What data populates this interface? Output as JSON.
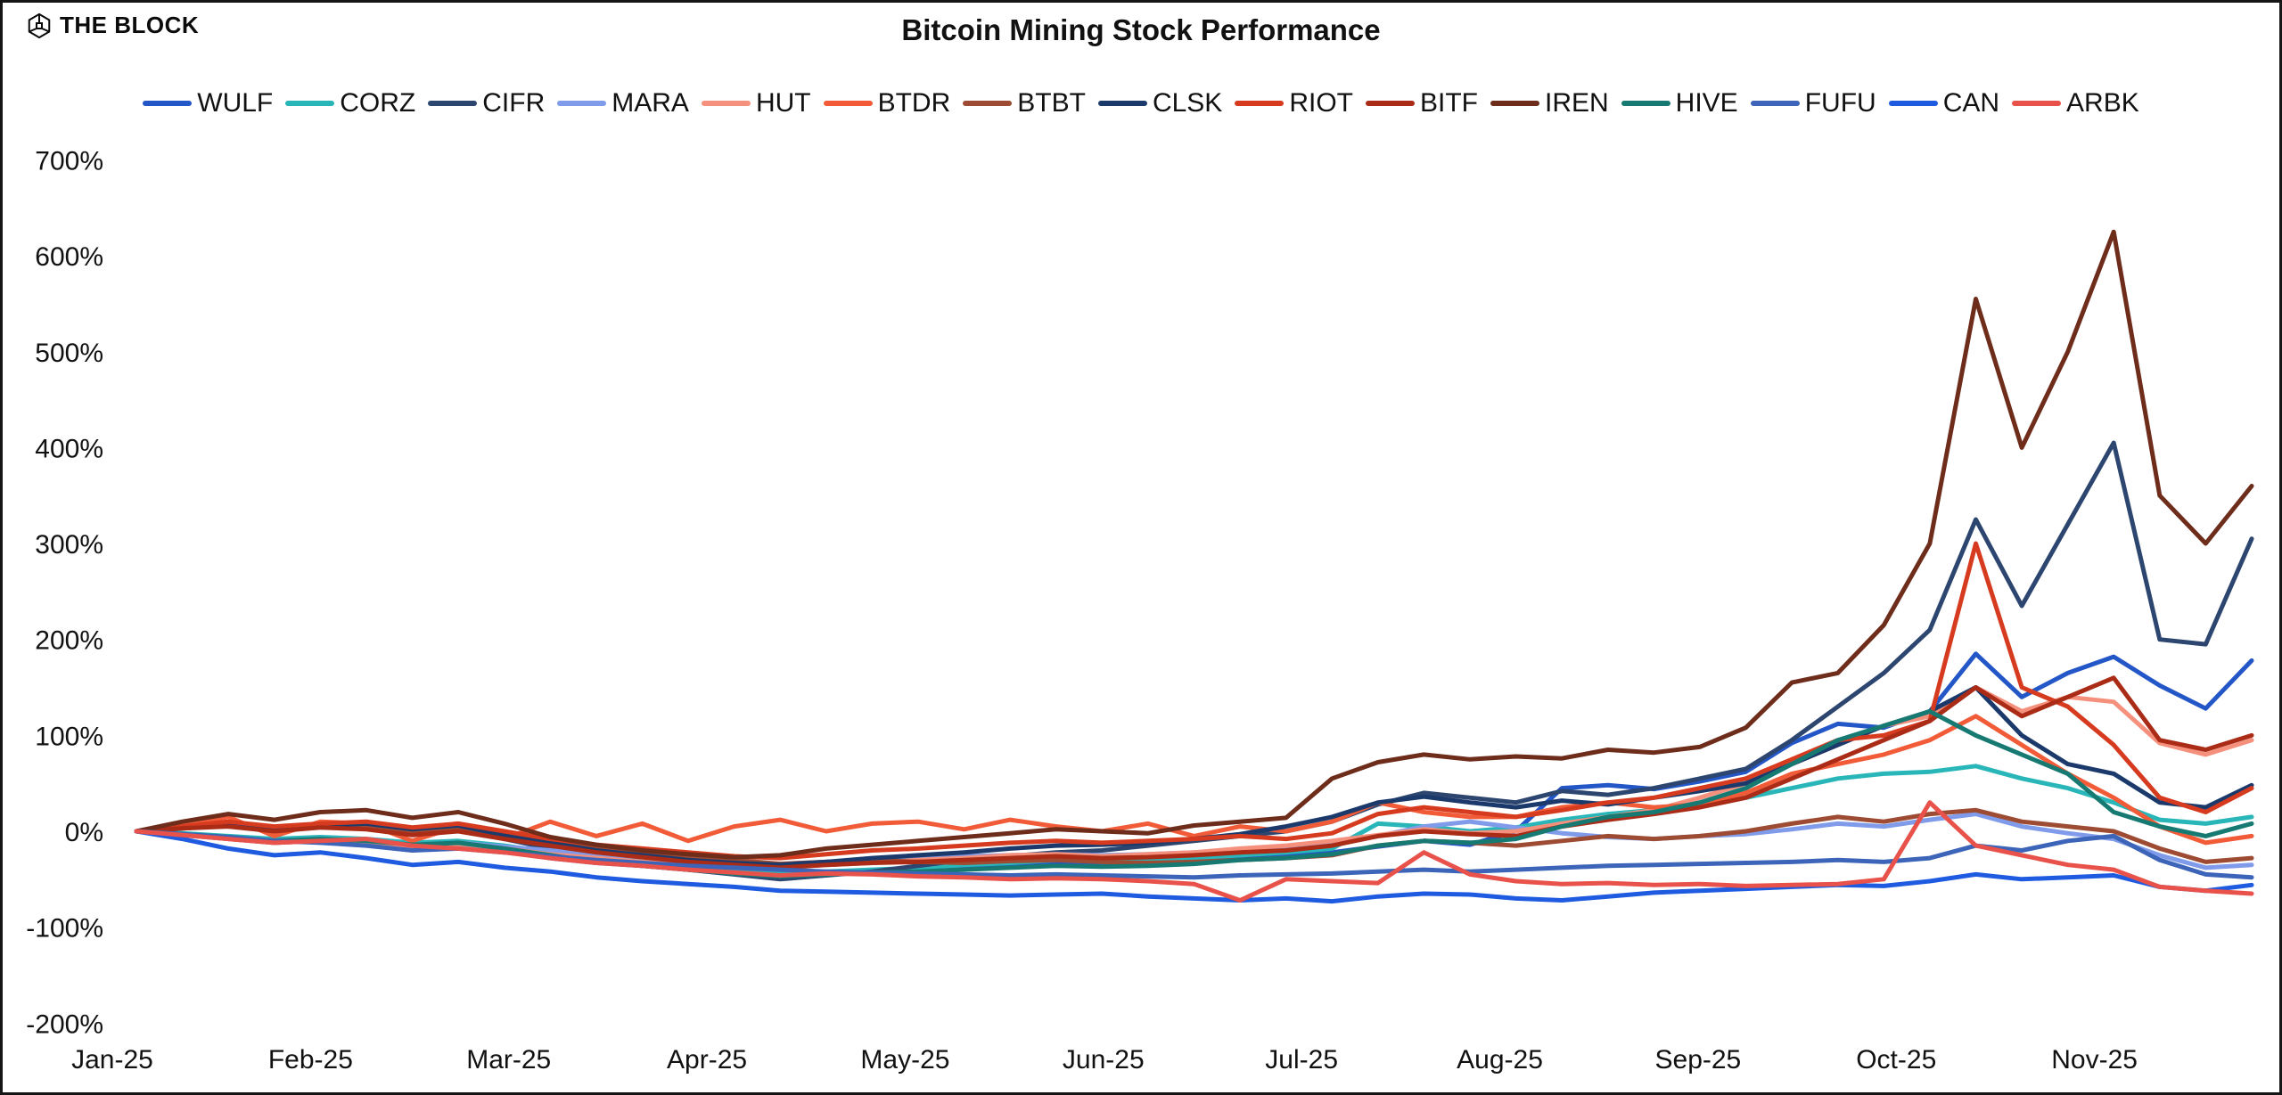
{
  "header": {
    "logo_text": "THE BLOCK",
    "title": "Bitcoin Mining Stock Performance"
  },
  "chart_data": {
    "type": "line",
    "title": "Bitcoin Mining Stock Performance",
    "x_axis": {
      "labels": [
        "Jan-25",
        "Feb-25",
        "Mar-25",
        "Apr-25",
        "May-25",
        "Jun-25",
        "Jul-25",
        "Aug-25",
        "Sep-25",
        "Oct-25",
        "Nov-25"
      ],
      "note": "weekly data points from Jan-25 through late Nov-25"
    },
    "y_axis": {
      "unit": "%",
      "min": -200,
      "max": 700,
      "ticks": [
        700,
        600,
        500,
        400,
        300,
        200,
        100,
        0,
        -100,
        -200
      ],
      "tick_labels": [
        "700%",
        "600%",
        "500%",
        "400%",
        "300%",
        "200%",
        "100%",
        "0%",
        "-100%",
        "-200%"
      ]
    },
    "grid": "off",
    "legend_position": "top",
    "series": [
      {
        "name": "WULF",
        "color": "#2356c7",
        "values": [
          0,
          -4,
          -8,
          -12,
          -10,
          -12,
          -18,
          -15,
          -20,
          -28,
          -33,
          -36,
          -40,
          -44,
          -46,
          -43,
          -41,
          -40,
          -38,
          -36,
          -34,
          -35,
          -34,
          -32,
          -28,
          -26,
          -22,
          -16,
          -10,
          -14,
          0,
          45,
          48,
          44,
          52,
          62,
          92,
          112,
          108,
          125,
          185,
          140,
          165,
          182,
          152,
          128,
          178
        ]
      },
      {
        "name": "CORZ",
        "color": "#29b6b9",
        "values": [
          0,
          -2,
          -5,
          -8,
          -6,
          -8,
          -12,
          -10,
          -15,
          -22,
          -28,
          -32,
          -36,
          -40,
          -44,
          -42,
          -40,
          -38,
          -35,
          -33,
          -30,
          -32,
          -30,
          -28,
          -25,
          -22,
          -18,
          8,
          5,
          0,
          4,
          12,
          18,
          22,
          28,
          35,
          45,
          55,
          60,
          62,
          68,
          55,
          45,
          30,
          12,
          8,
          15
        ]
      },
      {
        "name": "CIFR",
        "color": "#2c4670",
        "values": [
          0,
          4,
          8,
          2,
          6,
          8,
          0,
          5,
          -8,
          -18,
          -28,
          -35,
          -40,
          -45,
          -50,
          -46,
          -42,
          -36,
          -30,
          -26,
          -22,
          -20,
          -15,
          -10,
          -5,
          0,
          10,
          28,
          40,
          35,
          30,
          42,
          38,
          45,
          55,
          65,
          95,
          130,
          165,
          210,
          325,
          235,
          320,
          405,
          200,
          195,
          305
        ]
      },
      {
        "name": "MARA",
        "color": "#7f9bea",
        "values": [
          0,
          -3,
          -7,
          -10,
          -8,
          -10,
          -14,
          -12,
          -16,
          -20,
          -24,
          -27,
          -30,
          -32,
          -34,
          -32,
          -30,
          -28,
          -26,
          -25,
          -24,
          -25,
          -24,
          -22,
          -20,
          -18,
          -14,
          -5,
          5,
          10,
          4,
          -2,
          -6,
          -8,
          -5,
          -3,
          2,
          8,
          5,
          12,
          18,
          5,
          -2,
          -8,
          -25,
          -38,
          -35
        ]
      },
      {
        "name": "HUT",
        "color": "#f5907d",
        "values": [
          0,
          -4,
          -8,
          -12,
          -10,
          -12,
          -16,
          -14,
          -18,
          -24,
          -28,
          -32,
          -34,
          -36,
          -38,
          -35,
          -33,
          -30,
          -28,
          -25,
          -24,
          -26,
          -24,
          -22,
          -18,
          -15,
          -10,
          -4,
          2,
          -2,
          0,
          8,
          15,
          22,
          35,
          50,
          70,
          90,
          110,
          120,
          150,
          125,
          140,
          135,
          92,
          80,
          95
        ]
      },
      {
        "name": "BTDR",
        "color": "#f25b38",
        "values": [
          0,
          8,
          15,
          -5,
          10,
          8,
          -10,
          5,
          -8,
          10,
          -5,
          8,
          -10,
          5,
          12,
          0,
          8,
          10,
          2,
          12,
          5,
          0,
          8,
          -5,
          5,
          0,
          10,
          30,
          20,
          15,
          15,
          25,
          30,
          25,
          28,
          40,
          60,
          70,
          80,
          95,
          120,
          90,
          60,
          35,
          5,
          -12,
          -5
        ]
      },
      {
        "name": "BTBT",
        "color": "#9e4b33",
        "values": [
          0,
          3,
          6,
          2,
          5,
          4,
          -2,
          2,
          -6,
          -12,
          -18,
          -22,
          -26,
          -30,
          -34,
          -32,
          -30,
          -32,
          -33,
          -31,
          -30,
          -32,
          -33,
          -32,
          -30,
          -28,
          -25,
          -15,
          -10,
          -12,
          -15,
          -10,
          -5,
          -8,
          -5,
          0,
          8,
          15,
          10,
          18,
          22,
          10,
          5,
          0,
          -18,
          -32,
          -28
        ]
      },
      {
        "name": "CLSK",
        "color": "#1b3a6b",
        "values": [
          0,
          4,
          8,
          3,
          6,
          8,
          2,
          6,
          -4,
          -12,
          -20,
          -25,
          -30,
          -33,
          -35,
          -32,
          -28,
          -25,
          -22,
          -18,
          -15,
          -14,
          -12,
          -8,
          -3,
          5,
          15,
          30,
          36,
          30,
          25,
          32,
          28,
          35,
          42,
          50,
          70,
          90,
          110,
          125,
          150,
          100,
          70,
          60,
          30,
          25,
          48
        ]
      },
      {
        "name": "RIOT",
        "color": "#d63b1f",
        "values": [
          0,
          5,
          10,
          5,
          8,
          10,
          4,
          8,
          0,
          -8,
          -14,
          -18,
          -22,
          -26,
          -28,
          -24,
          -20,
          -18,
          -15,
          -12,
          -10,
          -12,
          -10,
          -8,
          -5,
          -8,
          -2,
          18,
          25,
          20,
          15,
          22,
          30,
          35,
          45,
          55,
          75,
          95,
          100,
          115,
          300,
          150,
          130,
          90,
          35,
          20,
          45
        ]
      },
      {
        "name": "BITF",
        "color": "#aa2c17",
        "values": [
          0,
          3,
          5,
          0,
          4,
          2,
          -4,
          0,
          -8,
          -15,
          -22,
          -27,
          -32,
          -35,
          -38,
          -35,
          -33,
          -32,
          -30,
          -28,
          -26,
          -28,
          -27,
          -25,
          -22,
          -20,
          -15,
          -5,
          0,
          -3,
          -5,
          5,
          12,
          18,
          25,
          35,
          55,
          75,
          95,
          115,
          150,
          120,
          140,
          160,
          95,
          85,
          100
        ]
      },
      {
        "name": "IREN",
        "color": "#6e2c1b",
        "values": [
          0,
          10,
          18,
          12,
          20,
          22,
          14,
          20,
          8,
          -6,
          -14,
          -20,
          -24,
          -27,
          -25,
          -18,
          -14,
          -10,
          -6,
          -2,
          2,
          0,
          -2,
          6,
          10,
          14,
          55,
          72,
          80,
          75,
          78,
          76,
          85,
          82,
          88,
          108,
          155,
          165,
          215,
          300,
          555,
          400,
          500,
          625,
          350,
          300,
          360
        ]
      },
      {
        "name": "HIVE",
        "color": "#177a72",
        "values": [
          0,
          -3,
          -6,
          -10,
          -8,
          -10,
          -14,
          -12,
          -18,
          -25,
          -32,
          -36,
          -40,
          -44,
          -47,
          -45,
          -43,
          -42,
          -40,
          -38,
          -36,
          -37,
          -36,
          -34,
          -30,
          -28,
          -24,
          -15,
          -10,
          -12,
          -8,
          5,
          15,
          20,
          30,
          45,
          70,
          95,
          110,
          125,
          100,
          80,
          60,
          20,
          5,
          -5,
          8
        ]
      },
      {
        "name": "FUFU",
        "color": "#3c64b8",
        "values": [
          0,
          -3,
          -6,
          -10,
          -12,
          -15,
          -20,
          -18,
          -22,
          -26,
          -30,
          -33,
          -36,
          -38,
          -40,
          -42,
          -43,
          -44,
          -45,
          -46,
          -45,
          -46,
          -47,
          -48,
          -46,
          -45,
          -44,
          -42,
          -40,
          -42,
          -40,
          -38,
          -36,
          -35,
          -34,
          -33,
          -32,
          -30,
          -32,
          -28,
          -15,
          -20,
          -10,
          -5,
          -30,
          -45,
          -48
        ]
      },
      {
        "name": "CAN",
        "color": "#1e5be0",
        "values": [
          0,
          -8,
          -18,
          -25,
          -22,
          -28,
          -35,
          -32,
          -38,
          -42,
          -48,
          -52,
          -55,
          -58,
          -62,
          -63,
          -64,
          -65,
          -66,
          -67,
          -66,
          -65,
          -68,
          -70,
          -72,
          -70,
          -73,
          -68,
          -65,
          -66,
          -70,
          -72,
          -68,
          -64,
          -62,
          -60,
          -58,
          -56,
          -57,
          -52,
          -45,
          -50,
          -48,
          -46,
          -58,
          -62,
          -56
        ]
      },
      {
        "name": "ARBK",
        "color": "#e8524a",
        "values": [
          0,
          -4,
          -8,
          -12,
          -10,
          -8,
          -15,
          -18,
          -22,
          -28,
          -33,
          -36,
          -40,
          -43,
          -46,
          -44,
          -45,
          -47,
          -48,
          -50,
          -49,
          -50,
          -52,
          -55,
          -72,
          -50,
          -52,
          -54,
          -22,
          -45,
          -52,
          -55,
          -54,
          -56,
          -55,
          -57,
          -56,
          -55,
          -50,
          30,
          -15,
          -25,
          -35,
          -40,
          -58,
          -62,
          -65
        ]
      }
    ]
  }
}
